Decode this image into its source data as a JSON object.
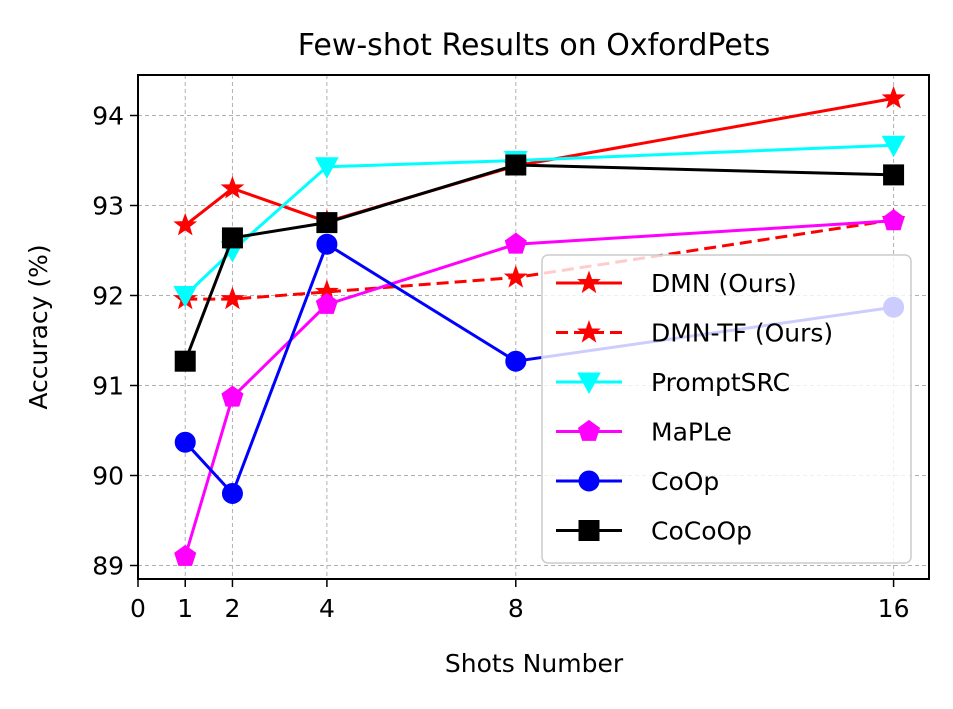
{
  "chart_data": {
    "type": "line",
    "title": "Few-shot Results on OxfordPets",
    "xlabel": "Shots Number",
    "ylabel": "Accuracy (%)",
    "xlim": [
      0,
      16.75
    ],
    "ylim": [
      88.85,
      94.45
    ],
    "xticks": [
      0,
      1,
      2,
      4,
      8,
      16
    ],
    "yticks": [
      89,
      90,
      91,
      92,
      93,
      94
    ],
    "grid": true,
    "legend_position": "lower-right",
    "x": [
      1,
      2,
      4,
      8,
      16
    ],
    "series": [
      {
        "name": "DMN (Ours)",
        "color": "#ff0000",
        "marker": "star",
        "dash": "solid",
        "values": [
          92.78,
          93.19,
          92.82,
          93.44,
          94.19
        ]
      },
      {
        "name": "DMN-TF (Ours)",
        "color": "#ff0000",
        "marker": "star",
        "dash": "dashed",
        "values": [
          91.96,
          91.96,
          92.04,
          92.2,
          92.84
        ]
      },
      {
        "name": "PromptSRC",
        "color": "#00ffff",
        "marker": "triangle-down",
        "dash": "solid",
        "values": [
          92.0,
          92.5,
          93.43,
          93.5,
          93.67
        ]
      },
      {
        "name": "MaPLe",
        "color": "#ff00ff",
        "marker": "pentagon",
        "dash": "solid",
        "values": [
          89.1,
          90.87,
          91.9,
          92.57,
          92.83
        ]
      },
      {
        "name": "CoOp",
        "color": "#0000ff",
        "marker": "circle",
        "dash": "solid",
        "values": [
          90.37,
          89.8,
          92.57,
          91.27,
          91.87
        ]
      },
      {
        "name": "CoCoOp",
        "color": "#000000",
        "marker": "square",
        "dash": "solid",
        "values": [
          91.27,
          92.64,
          92.81,
          93.45,
          93.34
        ]
      }
    ]
  }
}
